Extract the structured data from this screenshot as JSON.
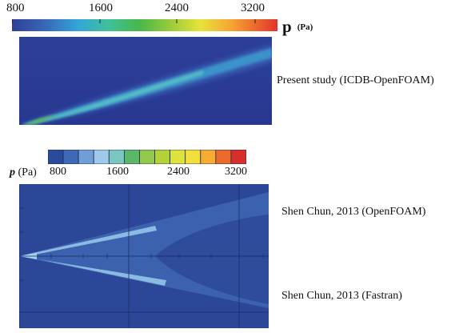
{
  "top_legend": {
    "ticks": [
      "800",
      "1600",
      "2400",
      "3200"
    ],
    "variable": "p",
    "unit": "(Pa)"
  },
  "top_panel": {
    "caption": "Present study (ICDB-OpenFOAM)"
  },
  "bottom_legend": {
    "label_var": "p",
    "label_unit": "(Pa)",
    "ticks": [
      "800",
      "1600",
      "2400",
      "3200"
    ],
    "bin_colors": [
      "#2a4a9c",
      "#3f68b6",
      "#6f9fd6",
      "#9ec9e8",
      "#79c7bf",
      "#5bb86a",
      "#93c94a",
      "#b5d13a",
      "#dde33a",
      "#f3df3a",
      "#f6ab31",
      "#ed6a2a",
      "#d7302a"
    ]
  },
  "bottom_panel": {
    "caption_upper": "Shen Chun, 2013 (OpenFOAM)",
    "caption_lower": "Shen Chun, 2013 (Fastran)"
  }
}
